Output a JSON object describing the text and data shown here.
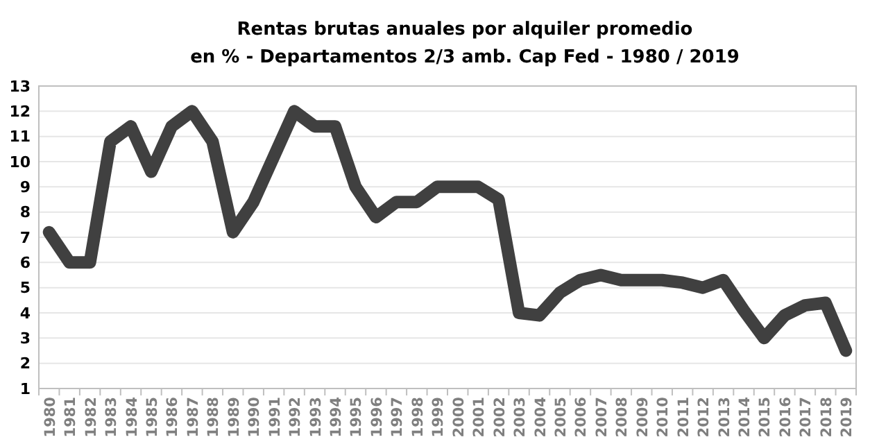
{
  "chart_data": {
    "type": "line",
    "title": "Rentas brutas anuales por alquiler promedio",
    "subtitle": "en % - Departamentos 2/3 amb. Cap Fed - 1980 / 2019",
    "categories": [
      "1980",
      "1981",
      "1982",
      "1983",
      "1984",
      "1985",
      "1986",
      "1987",
      "1988",
      "1989",
      "1990",
      "1991",
      "1992",
      "1993",
      "1994",
      "1995",
      "1996",
      "1997",
      "1998",
      "1999",
      "2000",
      "2001",
      "2002",
      "2003",
      "2004",
      "2005",
      "2006",
      "2007",
      "2008",
      "2009",
      "2010",
      "2011",
      "2012",
      "2013",
      "2014",
      "2015",
      "2016",
      "2017",
      "2018",
      "2019"
    ],
    "series": [
      {
        "color": "#404040",
        "values": [
          7.2,
          6.0,
          6.0,
          10.8,
          11.4,
          9.6,
          11.4,
          12.0,
          10.8,
          7.2,
          8.4,
          10.2,
          12.0,
          11.4,
          11.4,
          9.0,
          7.8,
          8.4,
          8.4,
          9.0,
          9.0,
          9.0,
          8.5,
          4.0,
          3.9,
          4.8,
          5.3,
          5.5,
          5.3,
          5.3,
          5.3,
          5.2,
          5.0,
          5.3,
          4.1,
          3.0,
          3.9,
          4.3,
          4.4,
          2.5
        ]
      }
    ],
    "ylim": [
      1,
      13
    ],
    "yticks": [
      1,
      2,
      3,
      4,
      5,
      6,
      7,
      8,
      9,
      10,
      11,
      12,
      13
    ],
    "grid": "y",
    "marker": "none",
    "line_style": "solid"
  }
}
